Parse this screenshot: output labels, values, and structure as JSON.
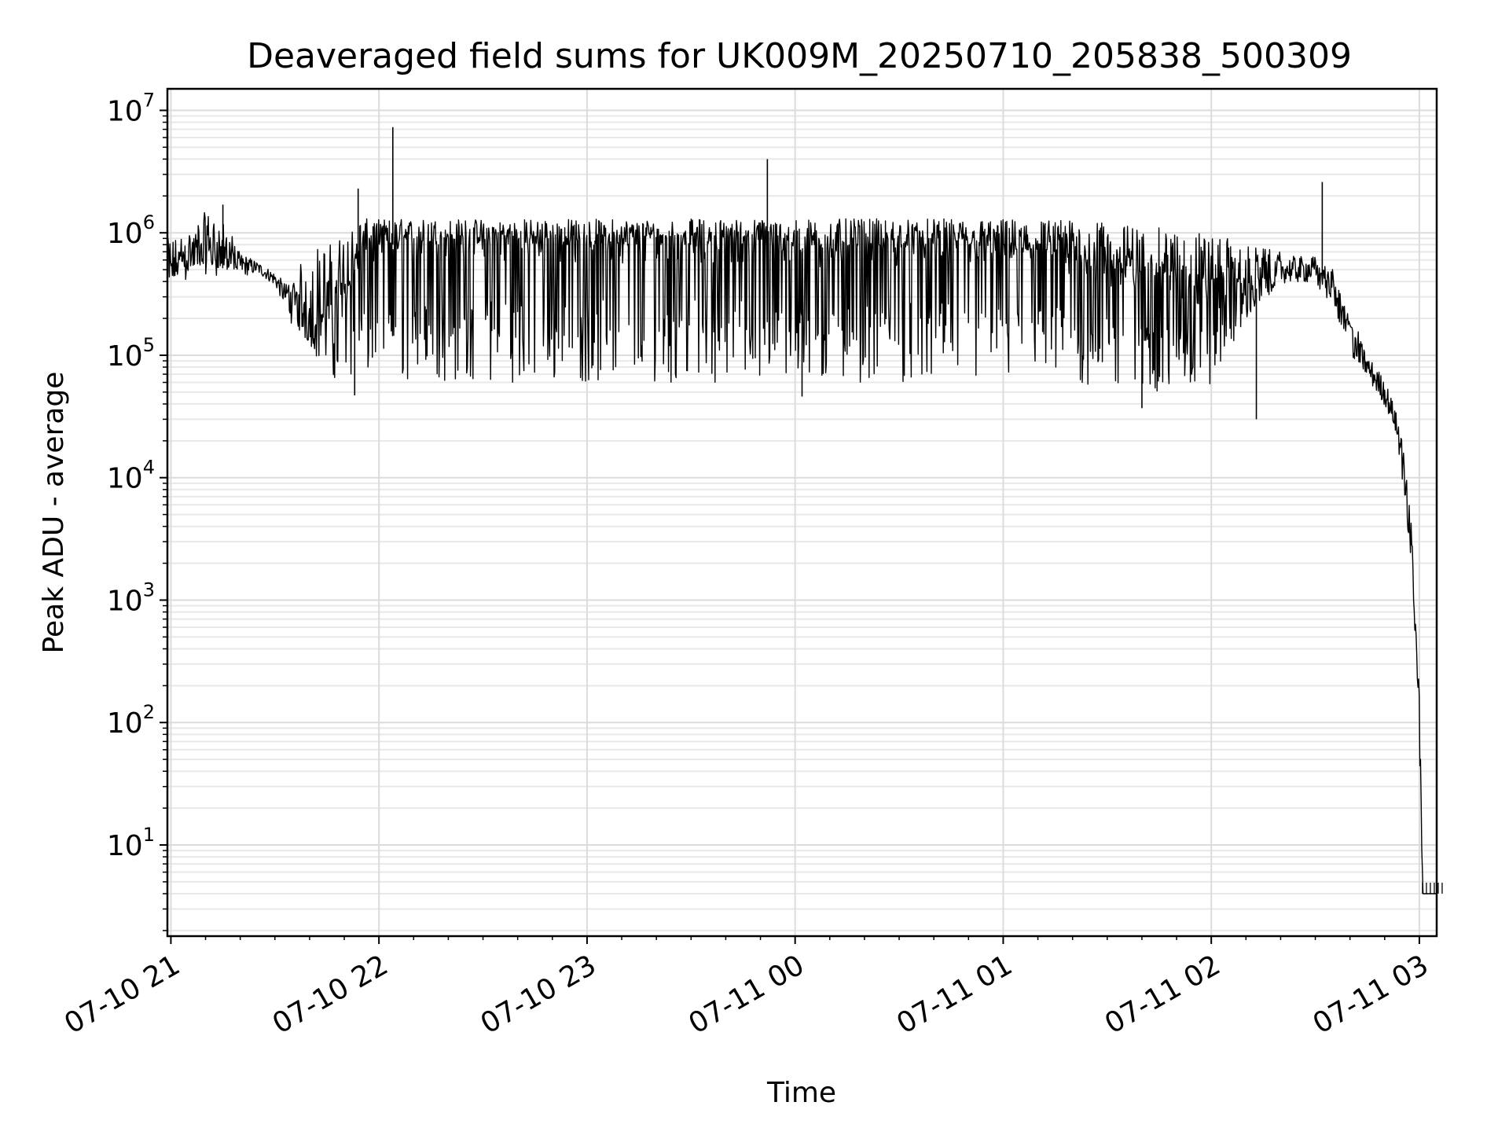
{
  "chart_data": {
    "type": "line",
    "title": "Deaveraged field sums for UK009M_20250710_205838_500309",
    "xlabel": "Time",
    "ylabel": "Peak ADU - average",
    "xlim": [
      "2025-07-10 20:59",
      "2025-07-11 03:05"
    ],
    "ylim": [
      1.8,
      15000000
    ],
    "yscale": "log",
    "grid": "major and minor",
    "legend": "none",
    "line_color": "#000000",
    "x_ticks": [
      {
        "value": "2025-07-10 21:00",
        "label": "07-10 21"
      },
      {
        "value": "2025-07-10 22:00",
        "label": "07-10 22"
      },
      {
        "value": "2025-07-10 23:00",
        "label": "07-10 23"
      },
      {
        "value": "2025-07-11 00:00",
        "label": "07-11 00"
      },
      {
        "value": "2025-07-11 01:00",
        "label": "07-11 01"
      },
      {
        "value": "2025-07-11 02:00",
        "label": "07-11 02"
      },
      {
        "value": "2025-07-11 03:00",
        "label": "07-11 03"
      }
    ],
    "y_ticks": [
      {
        "value": 10,
        "base": "10",
        "exp": "1"
      },
      {
        "value": 100,
        "base": "10",
        "exp": "2"
      },
      {
        "value": 1000,
        "base": "10",
        "exp": "3"
      },
      {
        "value": 10000,
        "base": "10",
        "exp": "4"
      },
      {
        "value": 100000,
        "base": "10",
        "exp": "5"
      },
      {
        "value": 1000000,
        "base": "10",
        "exp": "6"
      },
      {
        "value": 10000000,
        "base": "10",
        "exp": "7"
      }
    ],
    "series": [
      {
        "x": [
          "2025-07-10 20:59",
          "2025-07-10 21:05",
          "2025-07-10 21:10",
          "2025-07-10 21:15",
          "2025-07-10 21:20",
          "2025-07-10 21:25",
          "2025-07-10 21:30",
          "2025-07-10 21:35",
          "2025-07-10 21:40",
          "2025-07-10 21:45",
          "2025-07-10 21:50",
          "2025-07-10 21:55",
          "2025-07-10 22:00",
          "2025-07-10 22:10",
          "2025-07-10 22:20",
          "2025-07-10 22:30",
          "2025-07-10 22:40",
          "2025-07-10 22:50",
          "2025-07-10 23:00",
          "2025-07-10 23:15",
          "2025-07-10 23:30",
          "2025-07-10 23:45",
          "2025-07-11 00:00",
          "2025-07-11 00:15",
          "2025-07-11 00:30",
          "2025-07-11 00:45",
          "2025-07-11 01:00",
          "2025-07-11 01:15",
          "2025-07-11 01:30",
          "2025-07-11 01:45",
          "2025-07-11 02:00",
          "2025-07-11 02:10",
          "2025-07-11 02:20",
          "2025-07-11 02:30",
          "2025-07-11 02:35",
          "2025-07-11 02:40",
          "2025-07-11 02:45",
          "2025-07-11 02:50",
          "2025-07-11 02:53",
          "2025-07-11 02:55",
          "2025-07-11 02:57",
          "2025-07-11 02:58",
          "2025-07-11 02:59",
          "2025-07-11 03:00",
          "2025-07-11 03:01",
          "2025-07-11 03:03",
          "2025-07-11 03:05"
        ],
        "median": [
          450000,
          600000,
          650000,
          620000,
          550000,
          520000,
          420000,
          250000,
          180000,
          200000,
          300000,
          700000,
          800000,
          800000,
          800000,
          800000,
          800000,
          800000,
          800000,
          800000,
          800000,
          800000,
          700000,
          700000,
          750000,
          750000,
          750000,
          650000,
          500000,
          400000,
          350000,
          300000,
          500000,
          500000,
          350000,
          150000,
          80000,
          50000,
          30000,
          15000,
          5000,
          2000,
          500,
          100,
          4,
          4,
          4
        ],
        "low": [
          400000,
          500000,
          550000,
          500000,
          480000,
          470000,
          380000,
          200000,
          120000,
          70000,
          60000,
          60000,
          70000,
          60000,
          60000,
          60000,
          60000,
          60000,
          60000,
          60000,
          60000,
          60000,
          60000,
          60000,
          60000,
          60000,
          60000,
          60000,
          50000,
          50000,
          50000,
          200000,
          400000,
          400000,
          250000,
          100000,
          60000,
          40000,
          25000,
          10000,
          3000,
          1500,
          300,
          50,
          4,
          4,
          4
        ],
        "high": [
          900000,
          1000000,
          1500000,
          1200000,
          800000,
          600000,
          500000,
          400000,
          800000,
          800000,
          1000000,
          1300000,
          1300000,
          1300000,
          1300000,
          1300000,
          1300000,
          1300000,
          1300000,
          1300000,
          1300000,
          1300000,
          1300000,
          1300000,
          1300000,
          1300000,
          1300000,
          1300000,
          1200000,
          1100000,
          1000000,
          800000,
          700000,
          700000,
          500000,
          200000,
          100000,
          70000,
          40000,
          20000,
          8000,
          3000,
          800,
          200,
          4,
          4,
          4
        ]
      }
    ],
    "spikes": [
      {
        "x": "2025-07-10 22:04",
        "y": 7300000
      },
      {
        "x": "2025-07-10 21:54",
        "y": 2300000
      },
      {
        "x": "2025-07-10 23:52",
        "y": 4000000
      },
      {
        "x": "2025-07-11 02:32",
        "y": 2600000
      },
      {
        "x": "2025-07-10 21:15",
        "y": 1700000
      },
      {
        "x": "2025-07-11 02:13",
        "y": 30000
      },
      {
        "x": "2025-07-11 01:40",
        "y": 37000
      },
      {
        "x": "2025-07-10 21:53",
        "y": 47000
      },
      {
        "x": "2025-07-11 00:02",
        "y": 46000
      }
    ]
  }
}
